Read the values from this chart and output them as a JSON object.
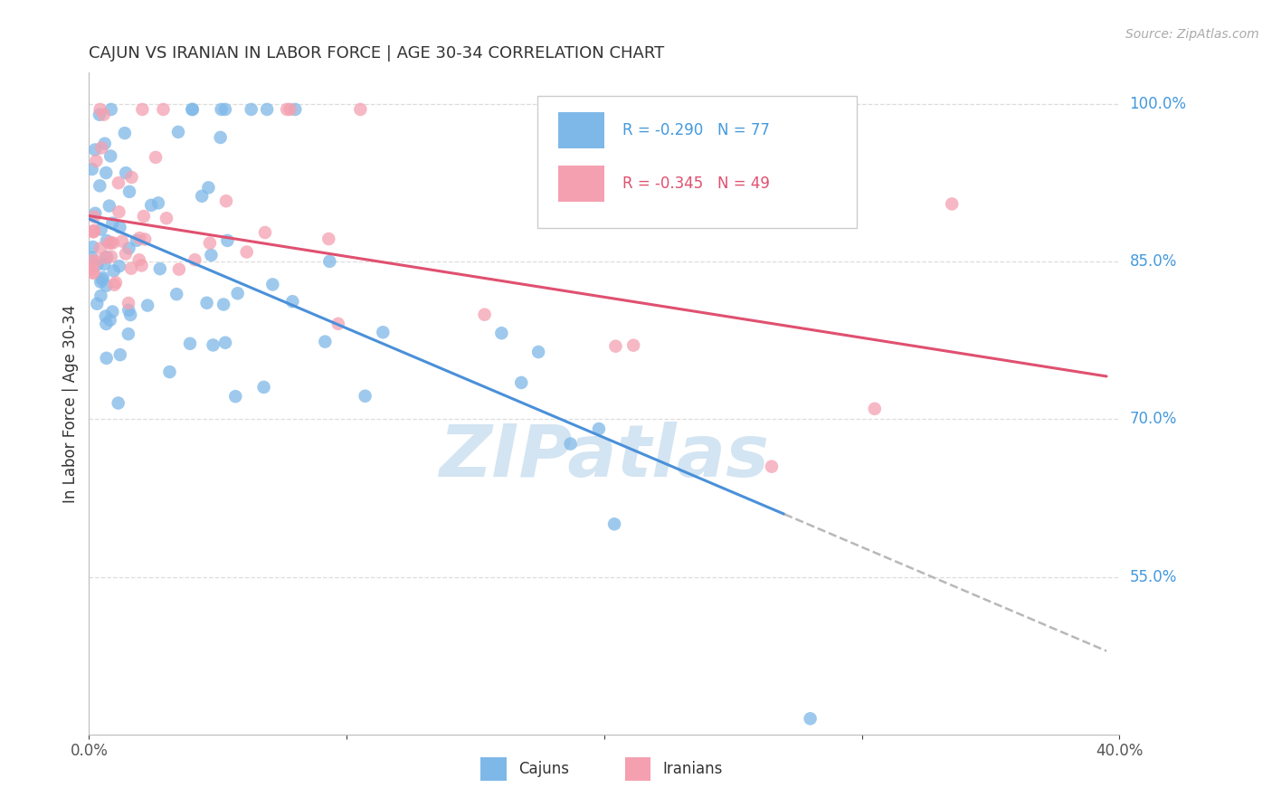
{
  "title": "CAJUN VS IRANIAN IN LABOR FORCE | AGE 30-34 CORRELATION CHART",
  "source": "Source: ZipAtlas.com",
  "ylabel": "In Labor Force | Age 30-34",
  "xlim": [
    0.0,
    0.4
  ],
  "ylim": [
    0.4,
    1.03
  ],
  "yticks": [
    0.55,
    0.7,
    0.85,
    1.0
  ],
  "ytick_labels": [
    "55.0%",
    "70.0%",
    "85.0%",
    "100.0%"
  ],
  "cajun_R": -0.29,
  "cajun_N": 77,
  "iranian_R": -0.345,
  "iranian_N": 49,
  "cajun_color": "#7eb8e8",
  "iranian_color": "#f4a0b0",
  "cajun_line_color": "#4a90d9",
  "iranian_line_color": "#e05070",
  "dashed_line_color": "#b8b8b8",
  "watermark_color": "#cce0f0",
  "background_color": "#ffffff",
  "grid_color": "#dddddd"
}
